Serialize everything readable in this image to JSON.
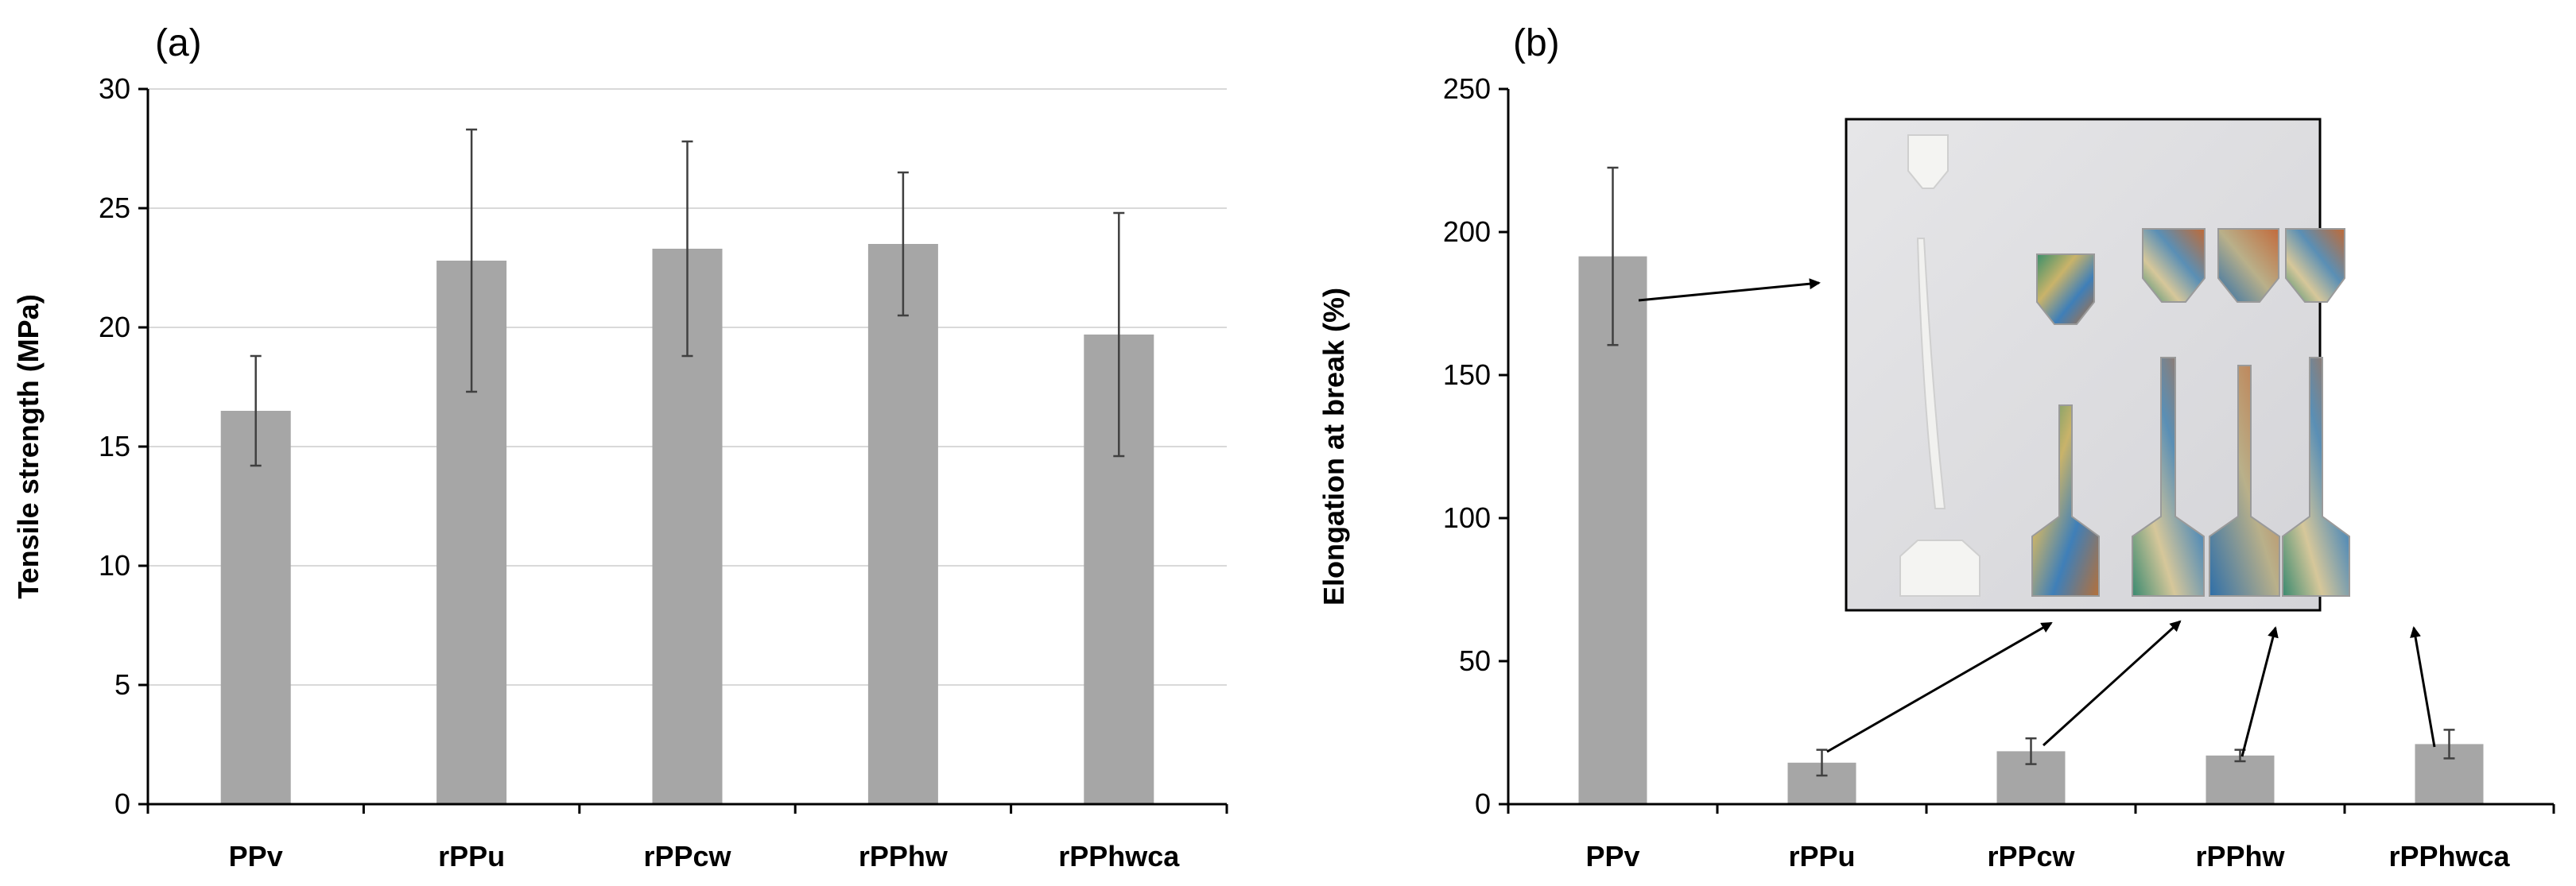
{
  "chart_data": [
    {
      "type": "bar",
      "panel_label": "(a)",
      "title": "",
      "xlabel": "",
      "ylabel": "Tensile strength (MPa)",
      "ylim": [
        0,
        30
      ],
      "yticks": [
        0,
        5,
        10,
        15,
        20,
        25,
        30
      ],
      "grid": true,
      "categories": [
        "PPv",
        "rPPu",
        "rPPcw",
        "rPPhw",
        "rPPhwca"
      ],
      "values": [
        16.5,
        22.8,
        23.3,
        23.5,
        19.7
      ],
      "errors": [
        2.3,
        5.5,
        4.5,
        3.0,
        5.1
      ]
    },
    {
      "type": "bar",
      "panel_label": "(b)",
      "title": "",
      "xlabel": "",
      "ylabel": "Elongation at break (%)",
      "ylim": [
        0,
        250
      ],
      "yticks": [
        0,
        50,
        100,
        150,
        200,
        250
      ],
      "grid": false,
      "categories": [
        "PPv",
        "rPPu",
        "rPPcw",
        "rPPhw",
        "rPPhwca"
      ],
      "values": [
        191.5,
        14.5,
        18.5,
        17.0,
        21.0
      ],
      "errors": [
        31.0,
        4.5,
        4.5,
        2.0,
        5.0
      ],
      "inset": "photo of fractured tensile specimens with arrows pointing from each bar"
    }
  ]
}
